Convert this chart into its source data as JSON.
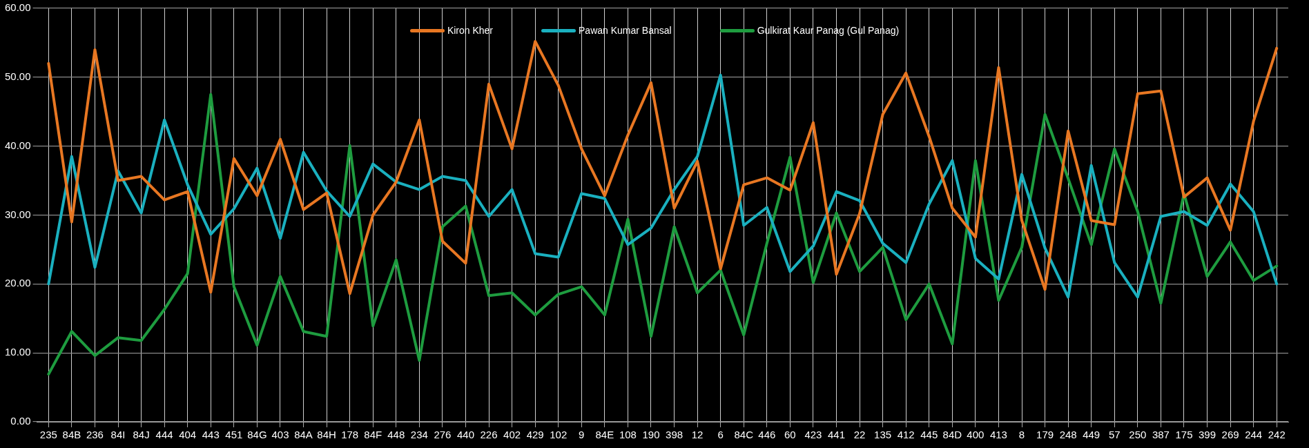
{
  "chart_data": {
    "type": "line",
    "categories": [
      "235",
      "84B",
      "236",
      "84I",
      "84J",
      "444",
      "404",
      "443",
      "451",
      "84G",
      "403",
      "84A",
      "84H",
      "178",
      "84F",
      "448",
      "234",
      "276",
      "440",
      "226",
      "402",
      "429",
      "102",
      "9",
      "84E",
      "108",
      "190",
      "398",
      "12",
      "6",
      "84C",
      "446",
      "60",
      "423",
      "441",
      "22",
      "135",
      "412",
      "445",
      "84D",
      "400",
      "413",
      "8",
      "179",
      "248",
      "449",
      "57",
      "250",
      "387",
      "175",
      "399",
      "269",
      "244",
      "242"
    ],
    "series": [
      {
        "name": "Kiron Kher",
        "color": "#e87722",
        "values": [
          52,
          29,
          54,
          35,
          35.6,
          32.2,
          33.4,
          18.8,
          38.2,
          32.8,
          41,
          30.8,
          33.2,
          18.6,
          30,
          34.8,
          43.8,
          26.2,
          23,
          49,
          39.6,
          55.2,
          48.8,
          39.6,
          32.8,
          41.6,
          49.2,
          31,
          37.8,
          22.2,
          34.4,
          35.4,
          33.6,
          43.4,
          21.4,
          30.2,
          44.6,
          50.6,
          41.4,
          31,
          26.8,
          51.4,
          29.2,
          19.2,
          42.2,
          29.2,
          28.6,
          47.6,
          48,
          32.6,
          35.4,
          27.8,
          43.6,
          54.2
        ]
      },
      {
        "name": "Pawan Kumar Bansal",
        "color": "#1ab0bf",
        "values": [
          20,
          38.5,
          22.4,
          36.4,
          30.3,
          43.8,
          34.4,
          27.2,
          30.9,
          36.8,
          26.6,
          39.1,
          33.5,
          29.8,
          37.4,
          34.8,
          33.7,
          35.6,
          35,
          29.8,
          33.7,
          24.4,
          23.9,
          33.1,
          32.4,
          25.7,
          28.1,
          33.7,
          38.5,
          50.3,
          28.5,
          31.1,
          21.8,
          25.5,
          33.4,
          32.1,
          25.9,
          23.1,
          31.6,
          37.9,
          23.7,
          20.7,
          35.9,
          25.2,
          18.1,
          37.2,
          23.1,
          18.1,
          29.8,
          30.5,
          28.5,
          34.5,
          30.5,
          20
        ]
      },
      {
        "name": "Gulkirat Kaur Panag (Gul Panag)",
        "color": "#1e9c3f",
        "values": [
          6.9,
          13.1,
          9.6,
          12.2,
          11.8,
          16.3,
          21.5,
          47.5,
          19.6,
          11.1,
          21.1,
          13.1,
          12.4,
          40.1,
          13.9,
          23.5,
          8.9,
          28.3,
          31.3,
          18.3,
          18.7,
          15.5,
          18.5,
          19.6,
          15.5,
          29.4,
          12.4,
          28.3,
          18.7,
          22,
          12.6,
          25.9,
          38.4,
          20.2,
          30.3,
          21.8,
          25.3,
          14.8,
          20,
          11.3,
          37.9,
          17.6,
          25.3,
          44.6,
          35.3,
          25.7,
          39.6,
          30.5,
          17.2,
          33.1,
          21.1,
          26.1,
          20.5,
          22.6
        ]
      }
    ],
    "ylim": [
      0,
      60
    ],
    "yticks": [
      {
        "value": 0,
        "label": "0.00"
      },
      {
        "value": 10,
        "label": "10.00"
      },
      {
        "value": 20,
        "label": "20.00"
      },
      {
        "value": 30,
        "label": "30.00"
      },
      {
        "value": 40,
        "label": "40.00"
      },
      {
        "value": 50,
        "label": "50.00"
      },
      {
        "value": 60,
        "label": "60.00"
      }
    ],
    "grid": true,
    "legend": "top",
    "marker": "none",
    "line_style": "solid"
  }
}
